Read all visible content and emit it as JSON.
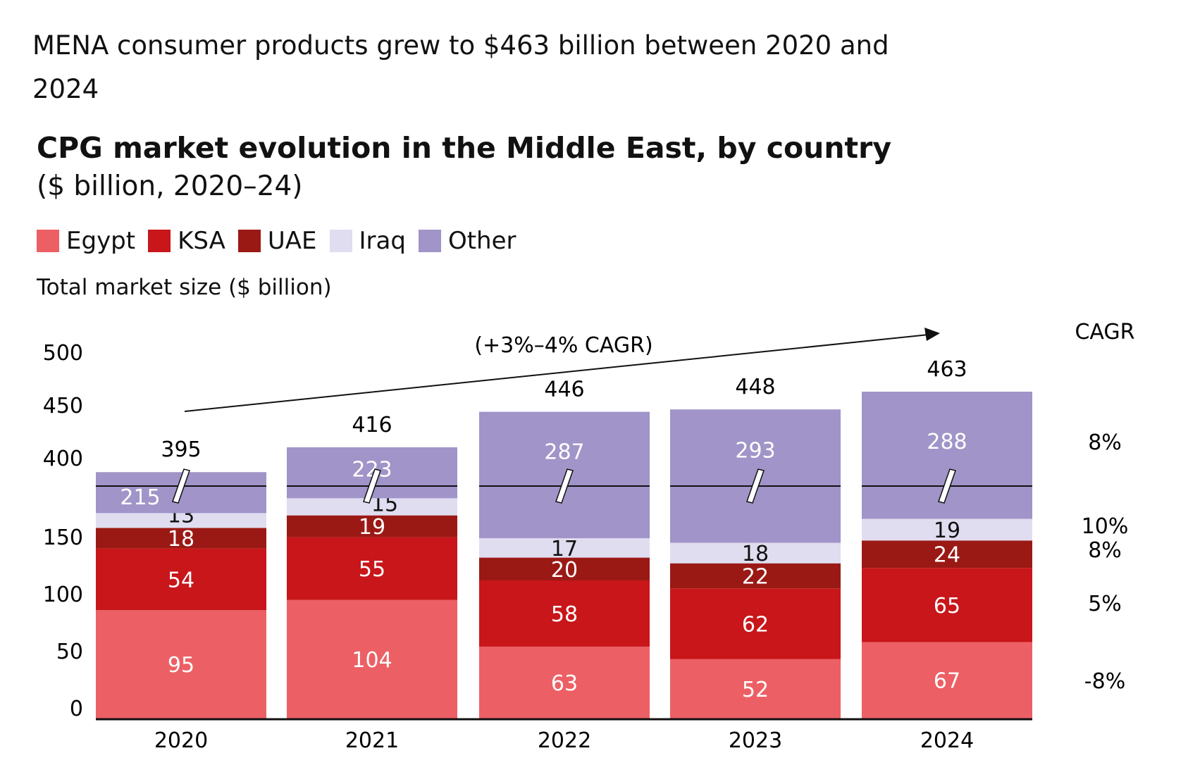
{
  "headline": "MENA consumer products grew to $463 billion between 2020 and 2024",
  "chart_data": {
    "type": "bar",
    "stacked": true,
    "title": "CPG market evolution in the Middle East, by country",
    "subtitle": "($ billion, 2020–24)",
    "ylabel": "Total market size ($ billion)",
    "axis_break": true,
    "y_ticks_lower": [
      0,
      50,
      100,
      150
    ],
    "y_ticks_upper": [
      400,
      450,
      500
    ],
    "categories": [
      "2020",
      "2021",
      "2022",
      "2023",
      "2024"
    ],
    "series": [
      {
        "name": "Egypt",
        "color": "#EC6065",
        "values": [
          95,
          104,
          63,
          52,
          67
        ]
      },
      {
        "name": "KSA",
        "color": "#C8161A",
        "values": [
          54,
          55,
          58,
          62,
          65
        ]
      },
      {
        "name": "UAE",
        "color": "#9B1915",
        "values": [
          18,
          19,
          20,
          22,
          24
        ]
      },
      {
        "name": "Iraq",
        "color": "#E0DDF0",
        "values": [
          13,
          15,
          17,
          18,
          19
        ]
      },
      {
        "name": "Other",
        "color": "#A094C8",
        "values": [
          215,
          223,
          287,
          293,
          288
        ]
      }
    ],
    "totals": [
      395,
      416,
      446,
      448,
      463
    ],
    "trend_annotation": "(+3%–4% CAGR)",
    "cagr_header": "CAGR",
    "cagr": [
      {
        "series": "Other",
        "value": "8%"
      },
      {
        "series": "Iraq",
        "value": "10%"
      },
      {
        "series": "UAE",
        "value": "8%"
      },
      {
        "series": "KSA",
        "value": "5%"
      },
      {
        "series": "Egypt",
        "value": "-8%"
      }
    ],
    "legend_position": "top-left",
    "grid": false
  }
}
